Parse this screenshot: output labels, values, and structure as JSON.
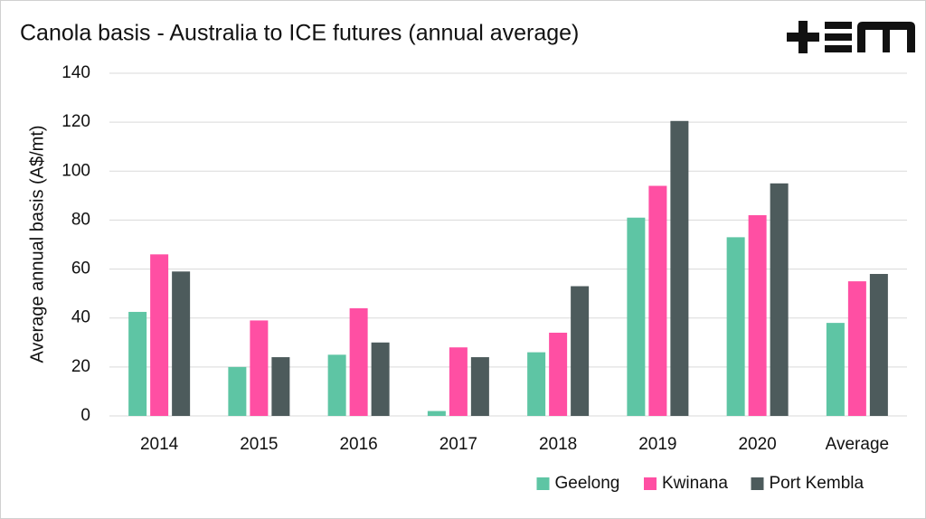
{
  "chart_data": {
    "type": "bar",
    "title": "Canola basis - Australia to ICE futures (annual average)",
    "y_label": "Average annual basis (A$/mt)",
    "categories": [
      "2014",
      "2015",
      "2016",
      "2017",
      "2018",
      "2019",
      "2020",
      "Average"
    ],
    "series": [
      {
        "name": "Geelong",
        "color": "#5ec5a4",
        "values": [
          42.5,
          20,
          25,
          2,
          26,
          81,
          73,
          38
        ]
      },
      {
        "name": "Kwinana",
        "color": "#ff4fa3",
        "values": [
          66,
          39,
          44,
          28,
          34,
          94,
          82,
          55
        ]
      },
      {
        "name": "Port Kembla",
        "color": "#4d5b5c",
        "values": [
          59,
          24,
          30,
          24,
          53,
          120.5,
          95,
          58
        ]
      }
    ],
    "ylim": [
      0,
      140
    ],
    "yticks": [
      0,
      20,
      40,
      60,
      80,
      100,
      120,
      140
    ],
    "grid": true,
    "legend": "bottom-right"
  }
}
